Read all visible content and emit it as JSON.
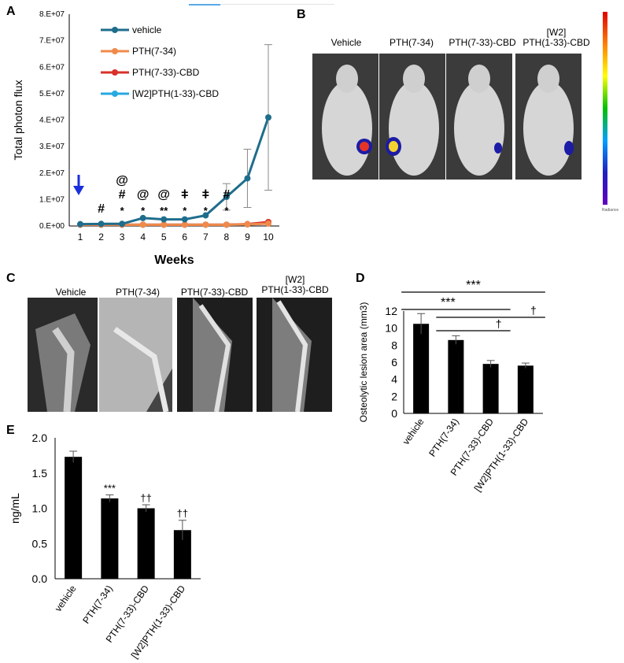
{
  "panels": {
    "a": "A",
    "b": "B",
    "c": "C",
    "d": "D",
    "e": "E"
  },
  "chart_data": [
    {
      "id": "A",
      "type": "line",
      "ylabel": "Total photon flux",
      "xlabel": "Weeks",
      "x": [
        1,
        2,
        3,
        4,
        5,
        6,
        7,
        8,
        9,
        10
      ],
      "yticks": [
        "0.E+00",
        "1.E+07",
        "2.E+07",
        "3.E+07",
        "4.E+07",
        "5.E+07",
        "6.E+07",
        "7.E+07",
        "8.E+07"
      ],
      "ylim": [
        0,
        80000000
      ],
      "series": [
        {
          "name": "vehicle",
          "color": "#1f6d8c",
          "values": [
            700000,
            800000,
            800000,
            3000000,
            2500000,
            2500000,
            4000000,
            11000000,
            18000000,
            41000000
          ],
          "errors": [
            0,
            0,
            0,
            0,
            0,
            0,
            0,
            5000000,
            11000000,
            27500000
          ]
        },
        {
          "name": "PTH(7-34)",
          "color": "#f08a4b",
          "values": [
            500000,
            500000,
            500000,
            500000,
            500000,
            500000,
            500000,
            500000,
            600000,
            900000
          ],
          "errors": [
            0,
            0,
            0,
            0,
            0,
            0,
            0,
            0,
            0,
            0
          ]
        },
        {
          "name": "PTH(7-33)-CBD",
          "color": "#d8322a",
          "values": [
            500000,
            500000,
            500000,
            500000,
            500000,
            500000,
            500000,
            500000,
            700000,
            1500000
          ],
          "errors": [
            0,
            0,
            0,
            0,
            0,
            0,
            0,
            0,
            0,
            0
          ]
        },
        {
          "name": "[W2]PTH(1-33)-CBD",
          "color": "#27a9e1",
          "values": [
            500000,
            500000,
            500000,
            500000,
            500000,
            500000,
            500000,
            500000,
            600000,
            1000000
          ],
          "errors": [
            0,
            0,
            0,
            0,
            0,
            0,
            0,
            0,
            0,
            0
          ]
        }
      ],
      "annotations": [
        {
          "week": 2,
          "lines": [
            "#"
          ]
        },
        {
          "week": 3,
          "lines": [
            "@",
            "#",
            "*"
          ]
        },
        {
          "week": 4,
          "lines": [
            "@",
            "*"
          ]
        },
        {
          "week": 5,
          "lines": [
            "@",
            "**"
          ]
        },
        {
          "week": 6,
          "lines": [
            "ǂ",
            "*"
          ]
        },
        {
          "week": 7,
          "lines": [
            "ǂ",
            "*"
          ]
        },
        {
          "week": 8,
          "lines": [
            "#",
            "*"
          ]
        }
      ],
      "arrow_week": 1
    },
    {
      "id": "D",
      "type": "bar",
      "ylabel": "Osteolytic lesion area (mm3)",
      "categories": [
        "vehicle",
        "PTH(7-34)",
        "PTH(7-33)-CBD",
        "[W2]PTH(1-33)-CBD"
      ],
      "values": [
        10.5,
        8.6,
        5.8,
        5.6
      ],
      "errors": [
        1.2,
        0.5,
        0.4,
        0.3
      ],
      "ylim": [
        0,
        12
      ],
      "yticks": [
        "0",
        "2",
        "4",
        "6",
        "8",
        "10",
        "12"
      ],
      "brackets": [
        {
          "from": 0,
          "to": 3,
          "label": "***"
        },
        {
          "from": 0,
          "to": 2,
          "label": "***"
        },
        {
          "from": 1,
          "to": 3,
          "label": "†"
        },
        {
          "from": 1,
          "to": 2,
          "label": "†"
        }
      ]
    },
    {
      "id": "E",
      "type": "bar",
      "ylabel": "ng/mL",
      "categories": [
        "vehicle",
        "PTH(7-34)",
        "PTH(7-33)-CBD",
        "[W2]PTH(1-33)-CBD"
      ],
      "values": [
        1.73,
        1.14,
        1.0,
        0.69
      ],
      "errors": [
        0.08,
        0.05,
        0.05,
        0.14
      ],
      "ylim": [
        0,
        2.0
      ],
      "yticks": [
        "0.0",
        "0.5",
        "1.0",
        "1.5",
        "2.0"
      ],
      "sig": [
        "",
        "***",
        "††",
        "††"
      ]
    }
  ],
  "panelB": {
    "labels": [
      "Vehicle",
      "PTH(7-34)",
      "PTH(7-33)-CBD",
      "[W2]\nPTH(1-33)-CBD"
    ],
    "scale_text": "Radiance"
  },
  "panelC": {
    "labels": [
      "Vehicle",
      "PTH(7-34)",
      "PTH(7-33)-CBD",
      "[W2]\nPTH(1-33)-CBD"
    ]
  }
}
